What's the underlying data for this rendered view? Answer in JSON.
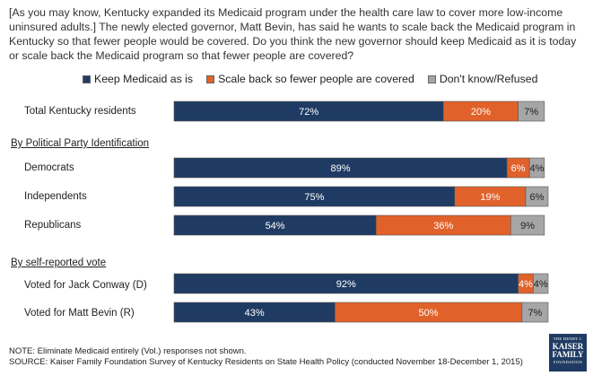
{
  "question": "[As you may know, Kentucky expanded its Medicaid program under the health care law to cover more low-income uninsured adults.] The newly elected governor, Matt Bevin, has said he wants to scale back the Medicaid program in Kentucky so that fewer people would be covered. Do you think the new governor should keep Medicaid as it is today or scale back the Medicaid program so that fewer people are covered?",
  "legend": {
    "keep": "Keep Medicaid as is",
    "scale": "Scale back so fewer people are covered",
    "dk": "Don't know/Refused"
  },
  "sections": {
    "party": "By Political Party Identification",
    "vote": "By self-reported vote"
  },
  "colors": {
    "keep": "#1f3b63",
    "scale": "#e0622a",
    "dk": "#a6a6a6"
  },
  "chart_data": {
    "type": "bar",
    "orientation": "horizontal",
    "stacked": true,
    "categories": [
      "Total Kentucky residents",
      "Democrats",
      "Independents",
      "Republicans",
      "Voted for Jack Conway (D)",
      "Voted for Matt Bevin (R)"
    ],
    "series": [
      {
        "name": "Keep Medicaid as is",
        "values": [
          72,
          89,
          75,
          54,
          92,
          43
        ]
      },
      {
        "name": "Scale back so fewer people are covered",
        "values": [
          20,
          6,
          19,
          36,
          4,
          50
        ]
      },
      {
        "name": "Don't know/Refused",
        "values": [
          7,
          4,
          6,
          9,
          4,
          7
        ]
      }
    ],
    "value_format": "percent",
    "xlim": [
      0,
      100
    ]
  },
  "footer": {
    "note": "NOTE: Eliminate Medicaid entirely (Vol.) responses not shown.",
    "source": "SOURCE: Kaiser Family Foundation Survey of Kentucky Residents on State Health Policy (conducted November 18-December 1, 2015)"
  },
  "logo": {
    "line1": "THE HENRY J.",
    "line2": "KAISER",
    "line3": "FAMILY",
    "line4": "FOUNDATION"
  }
}
